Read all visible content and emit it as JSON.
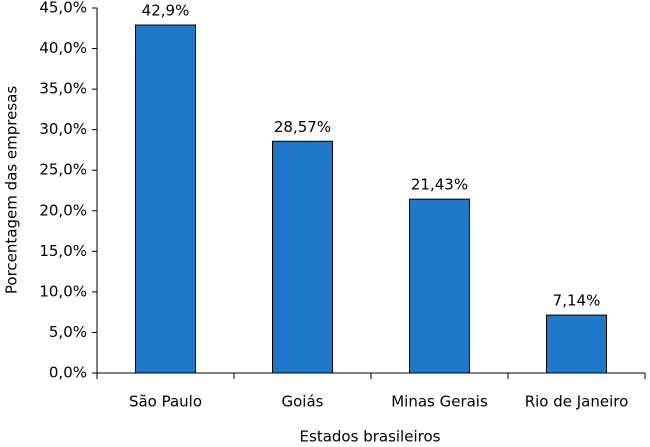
{
  "chart_data": {
    "type": "bar",
    "x_label": "Estados brasileiros",
    "y_label": "Porcentagem das empresas",
    "categories": [
      "São Paulo",
      "Goiás",
      "Minas Gerais",
      "Rio de Janeiro"
    ],
    "values": [
      42.9,
      28.57,
      21.43,
      7.14
    ],
    "value_labels": [
      "42,9%",
      "28,57%",
      "21,43%",
      "7,14%"
    ],
    "color": "#1f77c9",
    "ylim": [
      0,
      45
    ],
    "yticks": [
      {
        "value": 0,
        "label": "0,0%"
      },
      {
        "value": 5,
        "label": "5,0%"
      },
      {
        "value": 10,
        "label": "10,0%"
      },
      {
        "value": 15,
        "label": "15,0%"
      },
      {
        "value": 20,
        "label": "20,0%"
      },
      {
        "value": 25,
        "label": "25,0%"
      },
      {
        "value": 30,
        "label": "30,0%"
      },
      {
        "value": 35,
        "label": "35,0%"
      },
      {
        "value": 40,
        "label": "40,0%"
      },
      {
        "value": 45,
        "label": "45,0%"
      }
    ]
  }
}
